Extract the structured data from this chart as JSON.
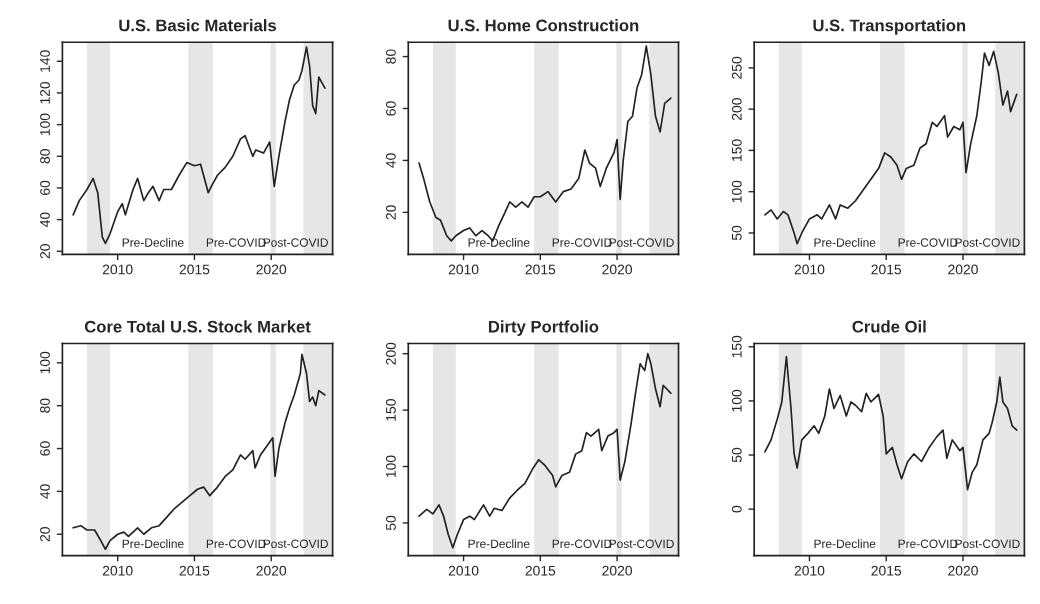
{
  "chart_data": [
    {
      "type": "line",
      "title": "U.S. Basic Materials",
      "xlim": [
        2006.4,
        2024.0
      ],
      "xticks": [
        2010,
        2015,
        2020
      ],
      "ylim": [
        18,
        152
      ],
      "yticks": [
        20,
        40,
        60,
        80,
        100,
        120,
        140
      ],
      "grid": false,
      "x": [
        2007.1,
        2007.5,
        2008.0,
        2008.4,
        2008.7,
        2009.0,
        2009.2,
        2009.5,
        2010.0,
        2010.3,
        2010.5,
        2011.0,
        2011.3,
        2011.7,
        2012.0,
        2012.3,
        2012.7,
        2013.0,
        2013.5,
        2014.0,
        2014.5,
        2015.0,
        2015.4,
        2015.9,
        2016.1,
        2016.5,
        2017.0,
        2017.5,
        2018.0,
        2018.3,
        2018.8,
        2019.0,
        2019.5,
        2019.9,
        2020.2,
        2020.5,
        2020.9,
        2021.2,
        2021.5,
        2021.8,
        2022.0,
        2022.3,
        2022.5,
        2022.7,
        2022.9,
        2023.1,
        2023.5
      ],
      "series": [
        {
          "color": "#222222",
          "values": [
            43,
            52,
            59,
            66,
            57,
            29,
            25,
            31,
            45,
            50,
            43,
            59,
            66,
            52,
            57,
            61,
            52,
            59,
            59,
            68,
            76,
            74,
            75,
            57,
            61,
            68,
            73,
            80,
            91,
            93,
            80,
            84,
            82,
            89,
            61,
            80,
            102,
            116,
            125,
            128,
            134,
            149,
            137,
            112,
            107,
            130,
            123
          ]
        }
      ],
      "bands": [
        {
          "axis": "x",
          "from": 2008.0,
          "to": 2009.5,
          "color": "#e6e6e6"
        },
        {
          "axis": "x",
          "from": 2014.6,
          "to": 2016.2,
          "color": "#e6e6e6"
        },
        {
          "axis": "x",
          "from": 2019.95,
          "to": 2020.3,
          "color": "#e6e6e6"
        },
        {
          "axis": "x",
          "from": 2022.1,
          "to": 2024.0,
          "color": "#e6e6e6"
        }
      ],
      "annotations": [
        "Pre-Decline",
        "Pre-COVID",
        "Post-COVID"
      ]
    },
    {
      "type": "line",
      "title": "U.S. Home Construction",
      "xlim": [
        2006.4,
        2024.0
      ],
      "xticks": [
        2010,
        2015,
        2020
      ],
      "ylim": [
        3.8,
        85.5
      ],
      "yticks": [
        20,
        40,
        60,
        80
      ],
      "grid": false,
      "x": [
        2007.1,
        2007.4,
        2007.8,
        2008.2,
        2008.5,
        2008.9,
        2009.2,
        2009.5,
        2010.0,
        2010.4,
        2010.8,
        2011.2,
        2011.6,
        2011.9,
        2012.3,
        2012.7,
        2013.0,
        2013.4,
        2013.8,
        2014.2,
        2014.6,
        2015.0,
        2015.5,
        2016.0,
        2016.5,
        2017.0,
        2017.5,
        2017.9,
        2018.2,
        2018.6,
        2018.9,
        2019.3,
        2019.8,
        2020.0,
        2020.2,
        2020.4,
        2020.7,
        2021.0,
        2021.3,
        2021.6,
        2021.9,
        2022.2,
        2022.5,
        2022.8,
        2023.1,
        2023.5
      ],
      "series": [
        {
          "color": "#222222",
          "values": [
            39,
            33,
            24,
            18,
            17,
            11,
            9,
            11,
            13,
            14,
            11,
            13,
            11,
            9,
            15,
            20,
            24,
            22,
            24,
            22,
            26,
            26,
            28,
            24,
            28,
            29,
            33,
            44,
            39,
            37,
            30,
            37,
            43,
            48,
            25,
            40,
            55,
            57,
            68,
            73,
            84,
            73,
            57,
            51,
            62,
            64
          ]
        }
      ],
      "bands": [
        {
          "axis": "x",
          "from": 2008.0,
          "to": 2009.5,
          "color": "#e6e6e6"
        },
        {
          "axis": "x",
          "from": 2014.6,
          "to": 2016.2,
          "color": "#e6e6e6"
        },
        {
          "axis": "x",
          "from": 2019.95,
          "to": 2020.3,
          "color": "#e6e6e6"
        },
        {
          "axis": "x",
          "from": 2022.1,
          "to": 2024.0,
          "color": "#e6e6e6"
        }
      ],
      "annotations": [
        "Pre-Decline",
        "Pre-COVID",
        "Post-COVID"
      ]
    },
    {
      "type": "line",
      "title": "U.S. Transportation",
      "xlim": [
        2006.4,
        2024.0
      ],
      "xticks": [
        2010,
        2015,
        2020
      ],
      "ylim": [
        24,
        281
      ],
      "yticks": [
        50,
        100,
        150,
        200,
        250
      ],
      "grid": false,
      "x": [
        2007.1,
        2007.5,
        2007.9,
        2008.3,
        2008.6,
        2009.0,
        2009.2,
        2009.5,
        2010.0,
        2010.5,
        2010.8,
        2011.3,
        2011.7,
        2012.0,
        2012.5,
        2013.0,
        2013.5,
        2014.0,
        2014.5,
        2014.9,
        2015.3,
        2015.7,
        2016.0,
        2016.3,
        2016.8,
        2017.2,
        2017.6,
        2018.0,
        2018.3,
        2018.8,
        2019.0,
        2019.4,
        2019.8,
        2020.0,
        2020.2,
        2020.5,
        2020.9,
        2021.2,
        2021.4,
        2021.7,
        2022.0,
        2022.3,
        2022.6,
        2022.9,
        2023.1,
        2023.5
      ],
      "series": [
        {
          "color": "#222222",
          "values": [
            72,
            78,
            67,
            76,
            72,
            50,
            37,
            50,
            67,
            72,
            67,
            84,
            67,
            84,
            80,
            89,
            102,
            115,
            128,
            147,
            142,
            132,
            115,
            128,
            132,
            153,
            158,
            184,
            179,
            192,
            166,
            179,
            175,
            184,
            123,
            158,
            192,
            235,
            268,
            253,
            270,
            244,
            205,
            222,
            197,
            218
          ]
        }
      ],
      "bands": [
        {
          "axis": "x",
          "from": 2008.0,
          "to": 2009.5,
          "color": "#e6e6e6"
        },
        {
          "axis": "x",
          "from": 2014.6,
          "to": 2016.2,
          "color": "#e6e6e6"
        },
        {
          "axis": "x",
          "from": 2019.95,
          "to": 2020.3,
          "color": "#e6e6e6"
        },
        {
          "axis": "x",
          "from": 2022.1,
          "to": 2024.0,
          "color": "#e6e6e6"
        }
      ],
      "annotations": [
        "Pre-Decline",
        "Pre-COVID",
        "Post-COVID"
      ]
    },
    {
      "type": "line",
      "title": "Core Total U.S. Stock Market",
      "xlim": [
        2006.4,
        2024.0
      ],
      "xticks": [
        2010,
        2015,
        2020
      ],
      "ylim": [
        10,
        109
      ],
      "yticks": [
        20,
        40,
        60,
        80,
        100
      ],
      "grid": false,
      "x": [
        2007.1,
        2007.6,
        2008.0,
        2008.5,
        2008.9,
        2009.2,
        2009.5,
        2010.0,
        2010.4,
        2010.7,
        2011.3,
        2011.7,
        2012.2,
        2012.7,
        2013.2,
        2013.7,
        2014.2,
        2014.7,
        2015.2,
        2015.6,
        2016.0,
        2016.5,
        2017.0,
        2017.5,
        2018.0,
        2018.3,
        2018.8,
        2018.95,
        2019.3,
        2019.8,
        2020.1,
        2020.25,
        2020.5,
        2020.9,
        2021.2,
        2021.5,
        2021.9,
        2022.0,
        2022.3,
        2022.5,
        2022.7,
        2022.9,
        2023.1,
        2023.5
      ],
      "series": [
        {
          "color": "#222222",
          "values": [
            23,
            24,
            22,
            22,
            17,
            13,
            17,
            20,
            21,
            19,
            23,
            20,
            23,
            24,
            28,
            32,
            35,
            38,
            41,
            42,
            38,
            42,
            47,
            50,
            57,
            55,
            59,
            51,
            57,
            62,
            65,
            47,
            60,
            72,
            79,
            85,
            95,
            104,
            95,
            82,
            84,
            80,
            87,
            85
          ]
        }
      ],
      "bands": [
        {
          "axis": "x",
          "from": 2008.0,
          "to": 2009.5,
          "color": "#e6e6e6"
        },
        {
          "axis": "x",
          "from": 2014.6,
          "to": 2016.2,
          "color": "#e6e6e6"
        },
        {
          "axis": "x",
          "from": 2019.95,
          "to": 2020.3,
          "color": "#e6e6e6"
        },
        {
          "axis": "x",
          "from": 2022.1,
          "to": 2024.0,
          "color": "#e6e6e6"
        }
      ],
      "annotations": [
        "Pre-Decline",
        "Pre-COVID",
        "Post-COVID"
      ]
    },
    {
      "type": "line",
      "title": "Dirty Portfolio",
      "xlim": [
        2006.4,
        2024.0
      ],
      "xticks": [
        2010,
        2015,
        2020
      ],
      "ylim": [
        21,
        209
      ],
      "yticks": [
        50,
        100,
        150,
        200
      ],
      "grid": false,
      "x": [
        2007.1,
        2007.6,
        2008.0,
        2008.4,
        2008.7,
        2009.0,
        2009.3,
        2009.6,
        2010.0,
        2010.4,
        2010.7,
        2011.3,
        2011.7,
        2012.0,
        2012.5,
        2013.0,
        2013.5,
        2014.0,
        2014.5,
        2014.9,
        2015.3,
        2015.8,
        2016.0,
        2016.4,
        2016.9,
        2017.3,
        2017.7,
        2018.0,
        2018.3,
        2018.8,
        2019.0,
        2019.4,
        2019.8,
        2020.0,
        2020.2,
        2020.5,
        2020.9,
        2021.2,
        2021.5,
        2021.8,
        2022.0,
        2022.2,
        2022.5,
        2022.8,
        2023.0,
        2023.5
      ],
      "series": [
        {
          "color": "#222222",
          "values": [
            56,
            62,
            58,
            66,
            56,
            40,
            28,
            40,
            53,
            56,
            53,
            66,
            56,
            63,
            61,
            72,
            79,
            85,
            98,
            106,
            101,
            92,
            82,
            92,
            95,
            111,
            114,
            130,
            127,
            133,
            114,
            127,
            130,
            133,
            88,
            104,
            137,
            165,
            191,
            185,
            200,
            191,
            169,
            153,
            172,
            165
          ]
        }
      ],
      "bands": [
        {
          "axis": "x",
          "from": 2008.0,
          "to": 2009.5,
          "color": "#e6e6e6"
        },
        {
          "axis": "x",
          "from": 2014.6,
          "to": 2016.2,
          "color": "#e6e6e6"
        },
        {
          "axis": "x",
          "from": 2019.95,
          "to": 2020.3,
          "color": "#e6e6e6"
        },
        {
          "axis": "x",
          "from": 2022.1,
          "to": 2024.0,
          "color": "#e6e6e6"
        }
      ],
      "annotations": [
        "Pre-Decline",
        "Pre-COVID",
        "Post-COVID"
      ]
    },
    {
      "type": "line",
      "title": "Crude Oil",
      "xlim": [
        2006.4,
        2024.0
      ],
      "xticks": [
        2010,
        2015,
        2020
      ],
      "ylim": [
        -43,
        153
      ],
      "yticks": [
        0,
        50,
        100,
        150
      ],
      "grid": false,
      "x": [
        2007.1,
        2007.5,
        2007.9,
        2008.2,
        2008.5,
        2008.8,
        2009.0,
        2009.2,
        2009.5,
        2009.9,
        2010.3,
        2010.6,
        2011.0,
        2011.3,
        2011.6,
        2012.0,
        2012.4,
        2012.7,
        2013.0,
        2013.4,
        2013.7,
        2014.0,
        2014.5,
        2014.8,
        2015.0,
        2015.4,
        2015.7,
        2016.0,
        2016.4,
        2016.8,
        2017.3,
        2017.8,
        2018.3,
        2018.7,
        2018.95,
        2019.3,
        2019.8,
        2020.0,
        2020.3,
        2020.6,
        2020.9,
        2021.3,
        2021.7,
        2021.9,
        2022.2,
        2022.4,
        2022.6,
        2022.9,
        2023.2,
        2023.5
      ],
      "series": [
        {
          "color": "#222222",
          "values": [
            53,
            64,
            83,
            99,
            141,
            93,
            51,
            38,
            64,
            70,
            77,
            70,
            86,
            111,
            93,
            105,
            86,
            99,
            96,
            90,
            107,
            99,
            106,
            86,
            51,
            57,
            41,
            28,
            44,
            51,
            44,
            57,
            67,
            73,
            47,
            64,
            54,
            57,
            18,
            34,
            41,
            64,
            70,
            80,
            99,
            122,
            99,
            93,
            77,
            73
          ]
        }
      ],
      "bands": [
        {
          "axis": "x",
          "from": 2008.0,
          "to": 2009.5,
          "color": "#e6e6e6"
        },
        {
          "axis": "x",
          "from": 2014.6,
          "to": 2016.2,
          "color": "#e6e6e6"
        },
        {
          "axis": "x",
          "from": 2019.95,
          "to": 2020.3,
          "color": "#e6e6e6"
        },
        {
          "axis": "x",
          "from": 2022.1,
          "to": 2024.0,
          "color": "#e6e6e6"
        }
      ],
      "annotations": [
        "Pre-Decline",
        "Pre-COVID",
        "Post-COVID"
      ]
    }
  ]
}
